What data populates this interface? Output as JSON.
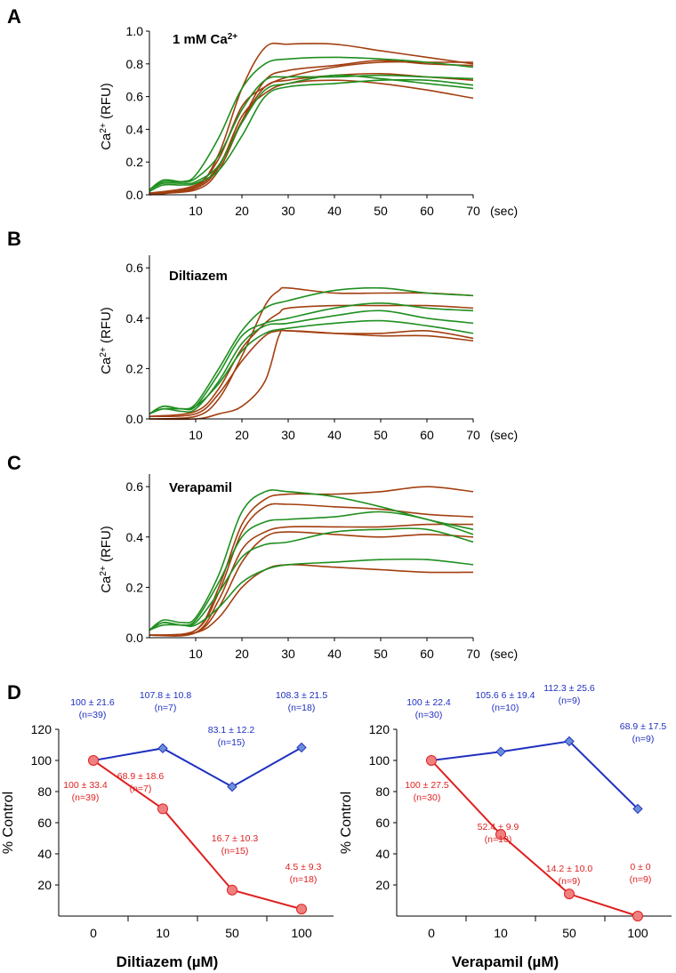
{
  "chart_data": [
    {
      "panel": "A",
      "type": "line",
      "annotation": "1 mM Ca",
      "annotation_sup": "2+",
      "ylabel": "Ca",
      "ylabel_sup": "2+",
      "ylabel_unit": " (RFU)",
      "xunit": "(sec)",
      "xlim": [
        0,
        70
      ],
      "ylim": [
        0,
        1.0
      ],
      "xticks": [
        10,
        20,
        30,
        40,
        50,
        60,
        70
      ],
      "yticks": [
        0.0,
        0.2,
        0.4,
        0.6,
        0.8,
        1.0
      ],
      "ytick_labels": [
        "0.0",
        "0.2",
        "0.4",
        "0.6",
        "0.8",
        "1.0"
      ],
      "colors": {
        "green": "#1f8f1f",
        "brown": "#a23f10"
      },
      "series": [
        {
          "color": "brown",
          "x": [
            0,
            10,
            15,
            20,
            25,
            30,
            40,
            50,
            60,
            70
          ],
          "y": [
            0.01,
            0.05,
            0.25,
            0.65,
            0.9,
            0.92,
            0.92,
            0.88,
            0.84,
            0.8
          ]
        },
        {
          "color": "brown",
          "x": [
            0,
            10,
            15,
            20,
            25,
            30,
            40,
            50,
            60,
            70
          ],
          "y": [
            0.01,
            0.03,
            0.15,
            0.45,
            0.7,
            0.76,
            0.79,
            0.82,
            0.8,
            0.79
          ]
        },
        {
          "color": "brown",
          "x": [
            0,
            10,
            15,
            20,
            25,
            30,
            40,
            50,
            60,
            70
          ],
          "y": [
            0.0,
            0.05,
            0.18,
            0.45,
            0.66,
            0.7,
            0.73,
            0.74,
            0.72,
            0.7
          ]
        },
        {
          "color": "brown",
          "x": [
            0,
            10,
            15,
            20,
            25,
            30,
            40,
            50,
            60,
            70
          ],
          "y": [
            0.0,
            0.04,
            0.17,
            0.48,
            0.62,
            0.68,
            0.7,
            0.68,
            0.64,
            0.59
          ]
        },
        {
          "color": "brown",
          "x": [
            0,
            10,
            15,
            20,
            25,
            30,
            40,
            50,
            60,
            70
          ],
          "y": [
            0.01,
            0.06,
            0.22,
            0.54,
            0.66,
            0.72,
            0.78,
            0.81,
            0.81,
            0.81
          ]
        },
        {
          "color": "green",
          "x": [
            0,
            3,
            7,
            10,
            15,
            20,
            25,
            30,
            40,
            50,
            60,
            70
          ],
          "y": [
            0.03,
            0.08,
            0.08,
            0.12,
            0.35,
            0.65,
            0.8,
            0.83,
            0.84,
            0.83,
            0.81,
            0.78
          ]
        },
        {
          "color": "green",
          "x": [
            0,
            3,
            7,
            10,
            15,
            20,
            25,
            30,
            40,
            50,
            60,
            70
          ],
          "y": [
            0.03,
            0.09,
            0.08,
            0.1,
            0.24,
            0.52,
            0.7,
            0.72,
            0.72,
            0.73,
            0.72,
            0.71
          ]
        },
        {
          "color": "green",
          "x": [
            0,
            3,
            7,
            10,
            15,
            20,
            25,
            30,
            40,
            50,
            60,
            70
          ],
          "y": [
            0.03,
            0.07,
            0.07,
            0.08,
            0.18,
            0.44,
            0.64,
            0.68,
            0.73,
            0.71,
            0.68,
            0.65
          ]
        },
        {
          "color": "green",
          "x": [
            0,
            3,
            7,
            10,
            15,
            20,
            25,
            30,
            40,
            50,
            60,
            70
          ],
          "y": [
            0.02,
            0.06,
            0.06,
            0.07,
            0.15,
            0.36,
            0.6,
            0.66,
            0.68,
            0.7,
            0.7,
            0.67
          ]
        }
      ]
    },
    {
      "panel": "B",
      "type": "line",
      "annotation": "Diltiazem",
      "ylabel": "Ca",
      "ylabel_sup": "2+",
      "ylabel_unit": " (RFU)",
      "xunit": "(sec)",
      "xlim": [
        0,
        70
      ],
      "ylim": [
        0,
        0.65
      ],
      "xticks": [
        10,
        20,
        30,
        40,
        50,
        60,
        70
      ],
      "yticks": [
        0.0,
        0.2,
        0.4,
        0.6
      ],
      "ytick_labels": [
        "0.0",
        "0.2",
        "0.4",
        "0.6"
      ],
      "colors": {
        "green": "#1f8f1f",
        "brown": "#a23f10"
      },
      "series": [
        {
          "color": "brown",
          "x": [
            0,
            10,
            15,
            20,
            25,
            28,
            30,
            40,
            50,
            60,
            70
          ],
          "y": [
            0.0,
            0.0,
            0.02,
            0.05,
            0.15,
            0.33,
            0.35,
            0.34,
            0.33,
            0.33,
            0.31
          ]
        },
        {
          "color": "brown",
          "x": [
            0,
            10,
            15,
            20,
            25,
            28,
            30,
            40,
            50,
            60,
            70
          ],
          "y": [
            0.0,
            0.01,
            0.08,
            0.25,
            0.45,
            0.51,
            0.52,
            0.5,
            0.5,
            0.5,
            0.49
          ]
        },
        {
          "color": "brown",
          "x": [
            0,
            10,
            15,
            20,
            25,
            28,
            30,
            40,
            50,
            60,
            70
          ],
          "y": [
            0.01,
            0.03,
            0.12,
            0.28,
            0.38,
            0.42,
            0.44,
            0.45,
            0.45,
            0.45,
            0.44
          ]
        },
        {
          "color": "brown",
          "x": [
            0,
            10,
            15,
            20,
            25,
            28,
            30,
            40,
            50,
            60,
            70
          ],
          "y": [
            0.01,
            0.02,
            0.1,
            0.23,
            0.33,
            0.35,
            0.35,
            0.34,
            0.34,
            0.35,
            0.32
          ]
        },
        {
          "color": "green",
          "x": [
            0,
            3,
            7,
            10,
            15,
            20,
            25,
            30,
            40,
            50,
            60,
            70
          ],
          "y": [
            0.02,
            0.05,
            0.04,
            0.06,
            0.2,
            0.35,
            0.44,
            0.47,
            0.51,
            0.52,
            0.5,
            0.49
          ]
        },
        {
          "color": "green",
          "x": [
            0,
            3,
            7,
            10,
            15,
            20,
            25,
            30,
            40,
            50,
            60,
            70
          ],
          "y": [
            0.02,
            0.04,
            0.04,
            0.05,
            0.18,
            0.33,
            0.38,
            0.4,
            0.44,
            0.46,
            0.44,
            0.43
          ]
        },
        {
          "color": "green",
          "x": [
            0,
            3,
            7,
            10,
            15,
            20,
            25,
            30,
            40,
            50,
            60,
            70
          ],
          "y": [
            0.02,
            0.04,
            0.03,
            0.04,
            0.15,
            0.3,
            0.37,
            0.38,
            0.41,
            0.43,
            0.4,
            0.38
          ]
        },
        {
          "color": "green",
          "x": [
            0,
            3,
            7,
            10,
            15,
            20,
            25,
            30,
            40,
            50,
            60,
            70
          ],
          "y": [
            0.02,
            0.05,
            0.04,
            0.05,
            0.14,
            0.27,
            0.34,
            0.36,
            0.38,
            0.39,
            0.37,
            0.34
          ]
        }
      ]
    },
    {
      "panel": "C",
      "type": "line",
      "annotation": "Verapamil",
      "ylabel": "Ca",
      "ylabel_sup": "2+",
      "ylabel_unit": " (RFU)",
      "xunit": "(sec)",
      "xlim": [
        0,
        70
      ],
      "ylim": [
        0,
        0.65
      ],
      "xticks": [
        10,
        20,
        30,
        40,
        50,
        60,
        70
      ],
      "yticks": [
        0.0,
        0.2,
        0.4,
        0.6
      ],
      "ytick_labels": [
        "0.0",
        "0.2",
        "0.4",
        "0.6"
      ],
      "colors": {
        "green": "#1f8f1f",
        "brown": "#a23f10"
      },
      "series": [
        {
          "color": "brown",
          "x": [
            0,
            10,
            15,
            20,
            25,
            30,
            40,
            50,
            60,
            70
          ],
          "y": [
            0.01,
            0.03,
            0.2,
            0.45,
            0.55,
            0.57,
            0.57,
            0.58,
            0.6,
            0.58
          ]
        },
        {
          "color": "brown",
          "x": [
            0,
            10,
            15,
            20,
            25,
            30,
            40,
            50,
            60,
            70
          ],
          "y": [
            0.01,
            0.03,
            0.18,
            0.42,
            0.52,
            0.53,
            0.52,
            0.51,
            0.49,
            0.48
          ]
        },
        {
          "color": "brown",
          "x": [
            0,
            10,
            15,
            20,
            25,
            30,
            40,
            50,
            60,
            70
          ],
          "y": [
            0.01,
            0.02,
            0.15,
            0.35,
            0.42,
            0.44,
            0.44,
            0.44,
            0.45,
            0.45
          ]
        },
        {
          "color": "brown",
          "x": [
            0,
            10,
            15,
            20,
            25,
            30,
            40,
            50,
            60,
            70
          ],
          "y": [
            0.01,
            0.02,
            0.12,
            0.3,
            0.4,
            0.42,
            0.41,
            0.4,
            0.41,
            0.4
          ]
        },
        {
          "color": "brown",
          "x": [
            0,
            10,
            15,
            20,
            25,
            30,
            40,
            50,
            60,
            70
          ],
          "y": [
            0.01,
            0.02,
            0.08,
            0.2,
            0.27,
            0.29,
            0.28,
            0.27,
            0.26,
            0.26
          ]
        },
        {
          "color": "green",
          "x": [
            0,
            3,
            7,
            10,
            15,
            20,
            25,
            30,
            40,
            50,
            60,
            70
          ],
          "y": [
            0.03,
            0.07,
            0.06,
            0.08,
            0.25,
            0.5,
            0.58,
            0.58,
            0.56,
            0.52,
            0.47,
            0.43
          ]
        },
        {
          "color": "green",
          "x": [
            0,
            3,
            7,
            10,
            15,
            20,
            25,
            30,
            40,
            50,
            60,
            70
          ],
          "y": [
            0.03,
            0.06,
            0.05,
            0.07,
            0.22,
            0.4,
            0.46,
            0.47,
            0.48,
            0.5,
            0.47,
            0.41
          ]
        },
        {
          "color": "green",
          "x": [
            0,
            3,
            7,
            10,
            15,
            20,
            25,
            30,
            40,
            50,
            60,
            70
          ],
          "y": [
            0.03,
            0.06,
            0.05,
            0.06,
            0.18,
            0.32,
            0.37,
            0.38,
            0.42,
            0.43,
            0.43,
            0.38
          ]
        },
        {
          "color": "green",
          "x": [
            0,
            3,
            7,
            10,
            15,
            20,
            25,
            30,
            40,
            50,
            60,
            70
          ],
          "y": [
            0.03,
            0.05,
            0.05,
            0.05,
            0.12,
            0.22,
            0.27,
            0.29,
            0.3,
            0.31,
            0.31,
            0.29
          ]
        }
      ]
    },
    {
      "panel": "D-left",
      "type": "line",
      "ylabel": "% Control",
      "xlabel": "Diltiazem (µM)",
      "categories": [
        "0",
        "10",
        "50",
        "100"
      ],
      "ylim": [
        0,
        120
      ],
      "yticks": [
        20,
        40,
        60,
        80,
        100,
        120
      ],
      "colors": {
        "blue": "#2030c0",
        "red": "#e02020",
        "marker_blue": "#6a8fd8",
        "marker_red": "#f08080"
      },
      "series": [
        {
          "color": "blue",
          "marker": "diamond",
          "values": [
            100,
            107.8,
            83.1,
            108.3
          ],
          "labels": [
            [
              "100 ± 21.6",
              "(n=39)"
            ],
            [
              "107.8 ± 10.8",
              "(n=7)"
            ],
            [
              "83.1 ± 12.2",
              "(n=15)"
            ],
            [
              "108.3 ± 21.5",
              "(n=18)"
            ]
          ]
        },
        {
          "color": "red",
          "marker": "circle",
          "values": [
            100,
            68.9,
            16.7,
            4.5
          ],
          "labels": [
            [
              "100 ± 33.4",
              "(n=39)"
            ],
            [
              "68.9 ± 18.6",
              "(n=7)"
            ],
            [
              "16.7 ± 10.3",
              "(n=15)"
            ],
            [
              "4.5 ± 9.3",
              "(n=18)"
            ]
          ]
        }
      ]
    },
    {
      "panel": "D-right",
      "type": "line",
      "ylabel": "% Control",
      "xlabel": "Verapamil (µM)",
      "categories": [
        "0",
        "10",
        "50",
        "100"
      ],
      "ylim": [
        0,
        120
      ],
      "yticks": [
        20,
        40,
        60,
        80,
        100,
        120
      ],
      "colors": {
        "blue": "#2030c0",
        "red": "#e02020",
        "marker_blue": "#6a8fd8",
        "marker_red": "#f08080"
      },
      "series": [
        {
          "color": "blue",
          "marker": "diamond",
          "values": [
            100,
            105.6,
            112.3,
            68.9
          ],
          "labels": [
            [
              "100 ± 22.4",
              "(n=30)"
            ],
            [
              "105.6 6 ± 19.4",
              "(n=10)"
            ],
            [
              "112.3 ± 25.6",
              "(n=9)"
            ],
            [
              "68.9 ± 17.5",
              "(n=9)"
            ]
          ]
        },
        {
          "color": "red",
          "marker": "circle",
          "values": [
            100,
            52.4,
            14.2,
            0
          ],
          "labels": [
            [
              "100 ± 27.5",
              "(n=30)"
            ],
            [
              "52.4 ± 9.9",
              "(n=10)"
            ],
            [
              "14.2 ± 10.0",
              "(n=9)"
            ],
            [
              "0 ± 0",
              "(n=9)"
            ]
          ]
        }
      ]
    }
  ]
}
